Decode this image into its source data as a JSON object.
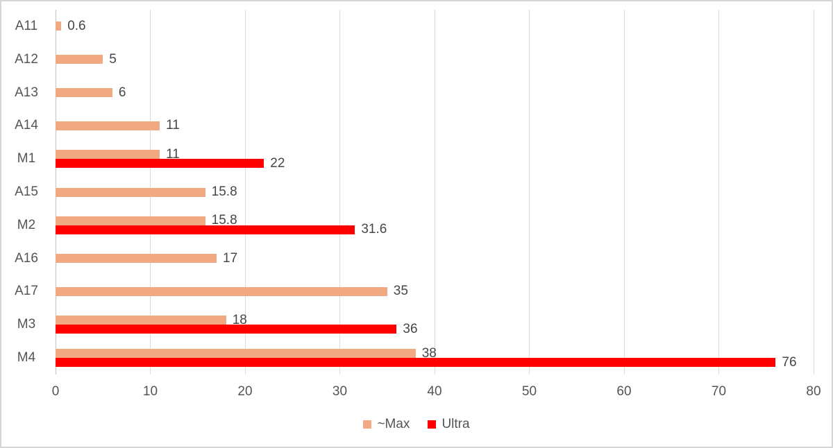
{
  "chart_data": {
    "type": "bar",
    "orientation": "horizontal",
    "title": "",
    "xlabel": "",
    "ylabel": "",
    "categories": [
      "A11",
      "A12",
      "A13",
      "A14",
      "M1",
      "A15",
      "M2",
      "A16",
      "A17",
      "M3",
      "M4"
    ],
    "series": [
      {
        "name": "~Max",
        "color": "#F1A983",
        "values": [
          0.6,
          5,
          6,
          11,
          11,
          15.8,
          15.8,
          17,
          35,
          18,
          38
        ]
      },
      {
        "name": "Ultra",
        "color": "#FF0000",
        "values": [
          null,
          null,
          null,
          null,
          22,
          null,
          31.6,
          null,
          null,
          36,
          76
        ]
      }
    ],
    "xlim": [
      0,
      80
    ],
    "x_ticks": [
      0,
      10,
      20,
      30,
      40,
      50,
      60,
      70,
      80
    ],
    "grid": true,
    "legend_position": "bottom"
  },
  "colors": {
    "max_series": "#F1A983",
    "ultra_series": "#FF0000",
    "gridline": "#DBDBDB",
    "axis_line": "#C3C3C3",
    "text": "#464646",
    "frame_border": "#D6D6D6",
    "background": "#FFFFFF"
  }
}
